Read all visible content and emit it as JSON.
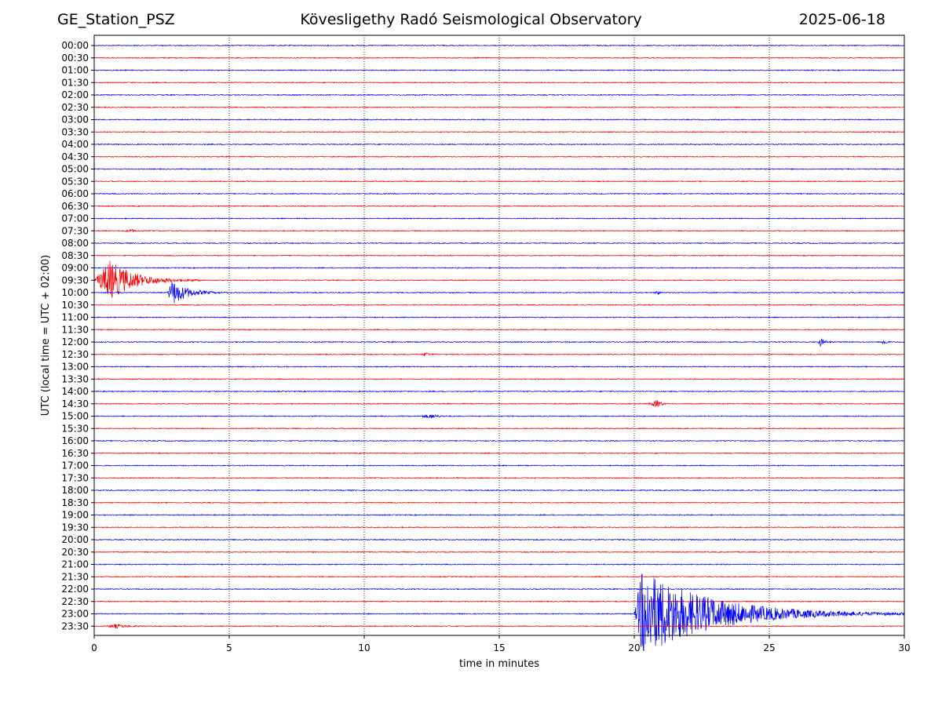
{
  "header": {
    "station": "GE_Station_PSZ",
    "observatory": "Kövesligethy Radó Seismological Observatory",
    "date": "2025-06-18"
  },
  "chart_data": {
    "type": "line",
    "title": "Kövesligethy Radó Seismological Observatory",
    "xlabel": "time in minutes",
    "ylabel": "UTC (local time = UTC + 02:00)",
    "xlim": [
      0,
      30
    ],
    "xticks": [
      0,
      5,
      10,
      15,
      20,
      25,
      30
    ],
    "xgrid": "dotted vertical lines every 5 minutes",
    "colors": {
      "blue": "#0000ff",
      "red": "#ff0000"
    },
    "traces": [
      "00:00",
      "00:30",
      "01:00",
      "01:30",
      "02:00",
      "02:30",
      "03:00",
      "03:30",
      "04:00",
      "04:30",
      "05:00",
      "05:30",
      "06:00",
      "06:30",
      "07:00",
      "07:30",
      "08:00",
      "08:30",
      "09:00",
      "09:30",
      "10:00",
      "10:30",
      "11:00",
      "11:30",
      "12:00",
      "12:30",
      "13:00",
      "13:30",
      "14:00",
      "14:30",
      "15:00",
      "15:30",
      "16:00",
      "16:30",
      "17:00",
      "17:30",
      "18:00",
      "18:30",
      "19:00",
      "19:30",
      "20:00",
      "20:30",
      "21:00",
      "21:30",
      "22:00",
      "22:30",
      "23:00",
      "23:30"
    ],
    "trace_color_pattern": [
      "blue",
      "red"
    ],
    "events": [
      {
        "trace": "09:30",
        "start_min": 0.0,
        "end_min": 4.0,
        "peak_min": 0.6,
        "relative_amplitude": 1.6
      },
      {
        "trace": "10:00",
        "start_min": 2.7,
        "end_min": 5.0,
        "peak_min": 2.9,
        "relative_amplitude": 1.0
      },
      {
        "trace": "10:00",
        "start_min": 20.7,
        "end_min": 21.1,
        "peak_min": 20.9,
        "relative_amplitude": 0.15
      },
      {
        "trace": "12:00",
        "start_min": 26.8,
        "end_min": 27.4,
        "peak_min": 26.9,
        "relative_amplitude": 0.35
      },
      {
        "trace": "12:00",
        "start_min": 29.1,
        "end_min": 29.5,
        "peak_min": 29.3,
        "relative_amplitude": 0.3
      },
      {
        "trace": "12:30",
        "start_min": 12.1,
        "end_min": 12.7,
        "peak_min": 12.3,
        "relative_amplitude": 0.15
      },
      {
        "trace": "14:30",
        "start_min": 20.5,
        "end_min": 21.3,
        "peak_min": 20.9,
        "relative_amplitude": 0.3
      },
      {
        "trace": "15:00",
        "start_min": 12.0,
        "end_min": 13.3,
        "peak_min": 12.5,
        "relative_amplitude": 0.15
      },
      {
        "trace": "07:30",
        "start_min": 1.0,
        "end_min": 1.9,
        "peak_min": 1.4,
        "relative_amplitude": 0.1
      },
      {
        "trace": "23:00",
        "start_min": 20.0,
        "end_min": 30.0,
        "peak_min": 20.3,
        "relative_amplitude": 3.6
      },
      {
        "trace": "23:30",
        "start_min": 0.4,
        "end_min": 2.4,
        "peak_min": 0.8,
        "relative_amplitude": 0.15
      }
    ]
  }
}
